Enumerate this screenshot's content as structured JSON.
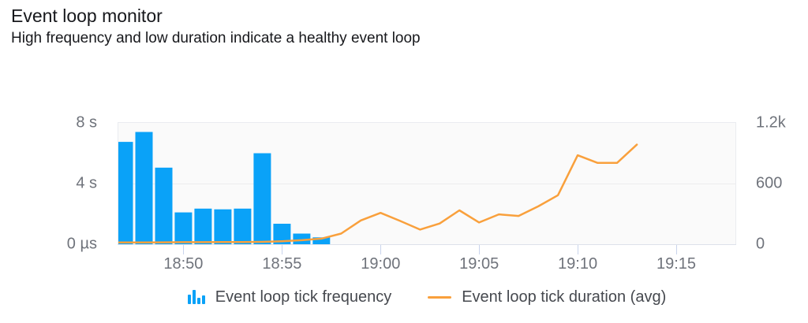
{
  "header": {
    "title": "Event loop monitor",
    "subtitle": "High frequency and low duration indicate a healthy event loop"
  },
  "chart_data": {
    "type": "bar+line combo (dual axis)",
    "title": "Event loop monitor",
    "grid": "horizontal gridline at mid-level, plot area bordered",
    "legend_position": "bottom-center",
    "x_axis": {
      "range_minutes_of_day": [
        1126.7,
        1158.0
      ],
      "ticks": [
        {
          "time": "18:50",
          "label": "18:50"
        },
        {
          "time": "18:55",
          "label": "18:55"
        },
        {
          "time": "19:00",
          "label": "19:00"
        },
        {
          "time": "19:05",
          "label": "19:05"
        },
        {
          "time": "19:10",
          "label": "19:10"
        },
        {
          "time": "19:15",
          "label": "19:15"
        }
      ]
    },
    "left_axis": {
      "labels": [
        "8 s",
        "4 s",
        "0 µs"
      ],
      "min": 0,
      "max": 8
    },
    "right_axis": {
      "labels": [
        "1.2k",
        "600",
        "0"
      ],
      "min": 0,
      "max": 1200
    },
    "series": [
      {
        "name": "Event loop tick frequency",
        "type": "bar",
        "axis": "left",
        "color": "#0aa2f8",
        "unit": "s",
        "points": [
          {
            "time": "18:47",
            "value": 6.75
          },
          {
            "time": "18:48",
            "value": 7.4
          },
          {
            "time": "18:49",
            "value": 5.05
          },
          {
            "time": "18:50",
            "value": 2.1
          },
          {
            "time": "18:51",
            "value": 2.35
          },
          {
            "time": "18:52",
            "value": 2.3
          },
          {
            "time": "18:53",
            "value": 2.35
          },
          {
            "time": "18:54",
            "value": 6.0
          },
          {
            "time": "18:55",
            "value": 1.35
          },
          {
            "time": "18:56",
            "value": 0.7
          },
          {
            "time": "18:57",
            "value": 0.45
          }
        ]
      },
      {
        "name": "Event loop tick duration (avg)",
        "type": "line",
        "axis": "right",
        "color": "#f9a03c",
        "points": [
          {
            "time": "18:46",
            "value": 18
          },
          {
            "time": "18:47",
            "value": 18
          },
          {
            "time": "18:48",
            "value": 18
          },
          {
            "time": "18:49",
            "value": 19
          },
          {
            "time": "18:50",
            "value": 20
          },
          {
            "time": "18:51",
            "value": 20
          },
          {
            "time": "18:52",
            "value": 21
          },
          {
            "time": "18:53",
            "value": 21
          },
          {
            "time": "18:54",
            "value": 23
          },
          {
            "time": "18:55",
            "value": 30
          },
          {
            "time": "18:56",
            "value": 40
          },
          {
            "time": "18:57",
            "value": 55
          },
          {
            "time": "18:58",
            "value": 105
          },
          {
            "time": "18:59",
            "value": 235
          },
          {
            "time": "19:00",
            "value": 310
          },
          {
            "time": "19:01",
            "value": 230
          },
          {
            "time": "19:02",
            "value": 145
          },
          {
            "time": "19:03",
            "value": 205
          },
          {
            "time": "19:04",
            "value": 335
          },
          {
            "time": "19:05",
            "value": 215
          },
          {
            "time": "19:06",
            "value": 295
          },
          {
            "time": "19:07",
            "value": 280
          },
          {
            "time": "19:08",
            "value": 375
          },
          {
            "time": "19:09",
            "value": 485
          },
          {
            "time": "19:10",
            "value": 880
          },
          {
            "time": "19:11",
            "value": 805
          },
          {
            "time": "19:12",
            "value": 805
          },
          {
            "time": "19:13",
            "value": 985
          }
        ]
      }
    ]
  },
  "colors": {
    "bar": "#0aa2f8",
    "line": "#f9a03c",
    "plot_background": "#fafafa",
    "plot_border": "#eaecf0",
    "axis_line": "#dde1ea",
    "tick_mark": "#c9d4ec",
    "axis_text": "#6f737b",
    "legend_text": "#46494f",
    "title_text": "#17181c"
  }
}
